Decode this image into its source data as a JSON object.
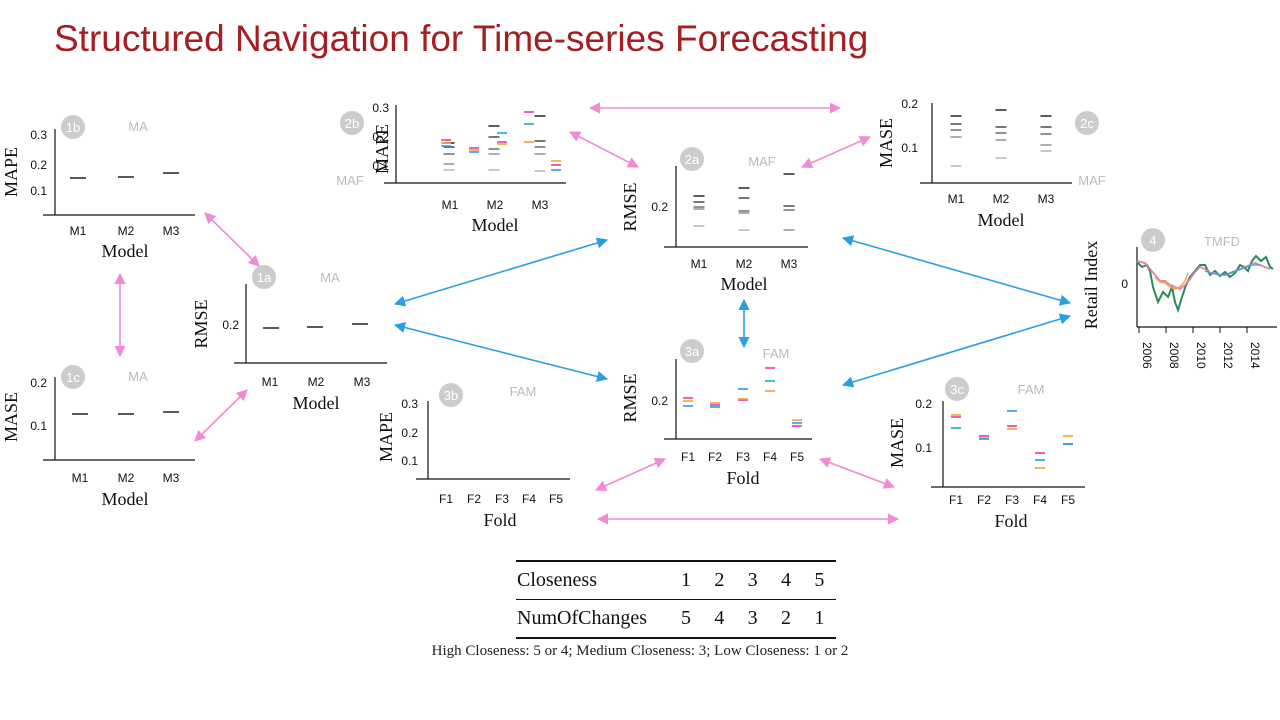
{
  "slide": {
    "title": "Structured Navigation for Time-series Forecasting"
  },
  "colors": {
    "title": "#a41e22",
    "pink_arrow": "#f08ad6",
    "blue_arrow": "#2a9fe0",
    "fold_colors": [
      "#e83a9d",
      "#f2a23a",
      "#2a9fe0"
    ],
    "badge": "#cccccc"
  },
  "panels": [
    {
      "id": "1b",
      "view": "MA",
      "ylabel": "MAPE",
      "xlabel": "Model",
      "yticks": [
        "0.1",
        "0.2",
        "0.3"
      ],
      "categories": [
        "M1",
        "M2",
        "M3"
      ],
      "kind": "single",
      "values": [
        0.155,
        0.16,
        0.172
      ]
    },
    {
      "id": "1c",
      "view": "MA",
      "ylabel": "MASE",
      "xlabel": "Model",
      "yticks": [
        "0.1",
        "0.2"
      ],
      "categories": [
        "M1",
        "M2",
        "M3"
      ],
      "kind": "single",
      "values": [
        0.127,
        0.127,
        0.129
      ]
    },
    {
      "id": "1a",
      "view": "MA",
      "ylabel": "RMSE",
      "xlabel": "Model",
      "yticks": [
        "0.2"
      ],
      "categories": [
        "M1",
        "M2",
        "M3"
      ],
      "kind": "single",
      "values": [
        0.195,
        0.196,
        0.201
      ]
    },
    {
      "id": "2b",
      "view": "MAF",
      "ylabel": "MAPE",
      "xlabel": "Model",
      "yticks": [
        "0.1",
        "0.2",
        "0.3"
      ],
      "categories": [
        "M1",
        "M2",
        "M3"
      ],
      "kind": "gray"
    },
    {
      "id": "2a",
      "view": "MAF",
      "ylabel": "RMSE",
      "xlabel": "Model",
      "yticks": [
        "0.2"
      ],
      "categories": [
        "M1",
        "M2",
        "M3"
      ],
      "kind": "gray"
    },
    {
      "id": "2c",
      "view": "MAF",
      "ylabel": "MASE",
      "xlabel": "Model",
      "yticks": [
        "0.1",
        "0.2"
      ],
      "categories": [
        "M1",
        "M2",
        "M3"
      ],
      "kind": "gray"
    },
    {
      "id": "3b",
      "view": "FAM",
      "ylabel": "MAPE",
      "xlabel": "Fold",
      "yticks": [
        "0.1",
        "0.2",
        "0.3"
      ],
      "categories": [
        "F1",
        "F2",
        "F3",
        "F4",
        "F5"
      ],
      "kind": "fold"
    },
    {
      "id": "3a",
      "view": "FAM",
      "ylabel": "RMSE",
      "xlabel": "Fold",
      "yticks": [
        "0.2"
      ],
      "categories": [
        "F1",
        "F2",
        "F3",
        "F4",
        "F5"
      ],
      "kind": "fold"
    },
    {
      "id": "3c",
      "view": "FAM",
      "ylabel": "MASE",
      "xlabel": "Fold",
      "yticks": [
        "0.1",
        "0.2"
      ],
      "categories": [
        "F1",
        "F2",
        "F3",
        "F4",
        "F5"
      ],
      "kind": "fold"
    },
    {
      "id": "4",
      "view": "TMFD",
      "ylabel": "Retail Index",
      "yticks": [
        "0"
      ],
      "xticks": [
        "2006",
        "2008",
        "2010",
        "2012",
        "2014"
      ],
      "kind": "timeseries"
    }
  ],
  "closeness_table": {
    "row1_label": "Closeness",
    "row1_values": [
      "1",
      "2",
      "3",
      "4",
      "5"
    ],
    "row2_label": "NumOfChanges",
    "row2_values": [
      "5",
      "4",
      "3",
      "2",
      "1"
    ]
  },
  "footnote": "High Closeness: 5 or 4; Medium Closeness: 3; Low Closeness: 1 or 2"
}
